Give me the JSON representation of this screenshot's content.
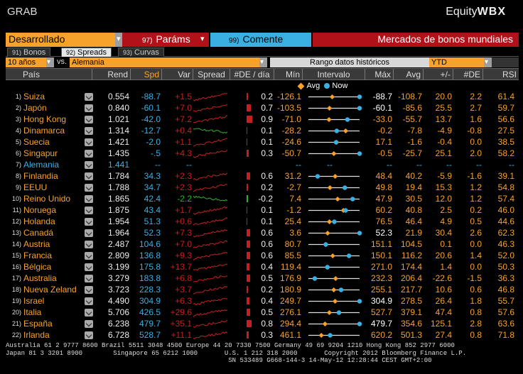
{
  "title": "GRAB",
  "brand": {
    "prefix": "Equity",
    "suffix": "WBX"
  },
  "toolbar": {
    "market": "Desarrollado",
    "params_num": "97)",
    "params_label": "Paráms",
    "comment_num": "99)",
    "comment_label": "Comente",
    "screen_title": "Mercados de bonos mundiales"
  },
  "tabs": [
    {
      "num": "91)",
      "label": "Bonos"
    },
    {
      "num": "92)",
      "label": "Spreads"
    },
    {
      "num": "93)",
      "label": "Curvas"
    }
  ],
  "filters": {
    "period": "10 años",
    "vs_label": "vs.",
    "vs_country": "Alemania",
    "hist_label": "Rango datos históricos",
    "range": "YTD"
  },
  "headers": {
    "pais": "País",
    "rend": "Rend",
    "spd": "Spd",
    "var": "Var",
    "spread": "Spread",
    "de_dia": "#DE / día",
    "min": "Mín",
    "intervalo": "Intervalo",
    "max": "Máx",
    "avg": "Avg",
    "pm": "+/-",
    "de": "#DE",
    "rsi": "RSI"
  },
  "legend": {
    "avg": "Avg",
    "now": "Now"
  },
  "colors": {
    "accent": "#f7a22a",
    "blue": "#3ab0e2",
    "red": "#c42020",
    "green": "#2fb02f"
  },
  "rows": [
    {
      "n": "1)",
      "pais": "Suiza",
      "rend": "0.554",
      "spd": "-88.7",
      "var": "+1.5",
      "de": "0.2",
      "min": "-126.1",
      "max": "-88.7",
      "avg": "-108.7",
      "pm": "20.0",
      "dde": "2.2",
      "rsi": "61.4",
      "trend": "red"
    },
    {
      "n": "2)",
      "pais": "Japón",
      "rend": "0.840",
      "spd": "-60.1",
      "var": "+7.0",
      "de": "0.7",
      "min": "-103.5",
      "max": "-60.1",
      "avg": "-85.6",
      "pm": "25.5",
      "dde": "2.7",
      "rsi": "59.7",
      "trend": "red"
    },
    {
      "n": "3)",
      "pais": "Hong Kong",
      "rend": "1.021",
      "spd": "-42.0",
      "var": "+7.2",
      "de": "0.9",
      "min": "-71.0",
      "max": "-33.0",
      "avg": "-55.7",
      "pm": "13.7",
      "dde": "1.6",
      "rsi": "56.6",
      "trend": "red"
    },
    {
      "n": "4)",
      "pais": "Dinamarca",
      "rend": "1.314",
      "spd": "-12.7",
      "var": "+0.4",
      "de": "0.1",
      "min": "-28.2",
      "max": "-0.2",
      "avg": "-7.8",
      "pm": "-4.9",
      "dde": "-0.8",
      "rsi": "27.5",
      "trend": "green"
    },
    {
      "n": "5)",
      "pais": "Suecia",
      "rend": "1.421",
      "spd": "-2.0",
      "var": "+1.1",
      "de": "0.1",
      "min": "-24.6",
      "max": "17.1",
      "avg": "-1.6",
      "pm": "-0.4",
      "dde": "0.0",
      "rsi": "38.5",
      "trend": "red"
    },
    {
      "n": "6)",
      "pais": "Singapur",
      "rend": "1.435",
      "spd": "-.5",
      "var": "+4.3",
      "de": "0.3",
      "min": "-50.7",
      "max": "-0.5",
      "avg": "-25.7",
      "pm": "25.1",
      "dde": "2.0",
      "rsi": "58.2",
      "trend": "red"
    },
    {
      "n": "7)",
      "pais": "Alemania",
      "rend": "1.441",
      "spd": "--",
      "var": "--",
      "de": "",
      "min": "--",
      "max": "--",
      "avg": "--",
      "pm": "--",
      "dde": "--",
      "rsi": "--",
      "trend": "none",
      "base": true
    },
    {
      "n": "8)",
      "pais": "Finlandia",
      "rend": "1.784",
      "spd": "34.3",
      "var": "+2.3",
      "de": "0.6",
      "min": "31.2",
      "max": "48.4",
      "avg": "40.2",
      "pm": "-5.9",
      "dde": "-1.6",
      "rsi": "39.1",
      "trend": "red"
    },
    {
      "n": "9)",
      "pais": "EEUU",
      "rend": "1.788",
      "spd": "34.7",
      "var": "+2.3",
      "de": "0.2",
      "min": "-2.7",
      "max": "49.8",
      "avg": "19.4",
      "pm": "15.3",
      "dde": "1.2",
      "rsi": "54.8",
      "trend": "red"
    },
    {
      "n": "10)",
      "pais": "Reino Unido",
      "rend": "1.865",
      "spd": "42.4",
      "var": "-2.2",
      "de": "-0.2",
      "min": "7.4",
      "max": "47.9",
      "avg": "30.5",
      "pm": "12.0",
      "dde": "1.2",
      "rsi": "57.4",
      "trend": "green"
    },
    {
      "n": "11)",
      "pais": "Noruega",
      "rend": "1.875",
      "spd": "43.4",
      "var": "+1.7",
      "de": "0.1",
      "min": "-1.2",
      "max": "60.2",
      "avg": "40.8",
      "pm": "2.5",
      "dde": "0.2",
      "rsi": "46.0",
      "trend": "red"
    },
    {
      "n": "12)",
      "pais": "Holanda",
      "rend": "1.954",
      "spd": "51.3",
      "var": "+0.6",
      "de": "0.1",
      "min": "25.4",
      "max": "76.5",
      "avg": "46.4",
      "pm": "4.9",
      "dde": "0.5",
      "rsi": "44.6",
      "trend": "red"
    },
    {
      "n": "13)",
      "pais": "Canadá",
      "rend": "1.964",
      "spd": "52.3",
      "var": "+7.3",
      "de": "0.6",
      "min": "3.6",
      "max": "52.3",
      "avg": "21.9",
      "pm": "30.4",
      "dde": "2.6",
      "rsi": "62.3",
      "trend": "red"
    },
    {
      "n": "14)",
      "pais": "Austria",
      "rend": "2.487",
      "spd": "104.6",
      "var": "+7.0",
      "de": "0.6",
      "min": "80.7",
      "max": "151.1",
      "avg": "104.5",
      "pm": "0.1",
      "dde": "0.0",
      "rsi": "46.3",
      "trend": "red"
    },
    {
      "n": "15)",
      "pais": "Francia",
      "rend": "2.809",
      "spd": "136.8",
      "var": "+9.3",
      "de": "0.6",
      "min": "85.5",
      "max": "150.1",
      "avg": "116.2",
      "pm": "20.6",
      "dde": "1.4",
      "rsi": "52.0",
      "trend": "red"
    },
    {
      "n": "16)",
      "pais": "Bélgica",
      "rend": "3.199",
      "spd": "175.8",
      "var": "+13.7",
      "de": "0.4",
      "min": "119.4",
      "max": "271.0",
      "avg": "174.4",
      "pm": "1.4",
      "dde": "0.0",
      "rsi": "50.3",
      "trend": "red"
    },
    {
      "n": "17)",
      "pais": "Australia",
      "rend": "3.279",
      "spd": "183.8",
      "var": "+6.8",
      "de": "0.5",
      "min": "176.9",
      "max": "232.3",
      "avg": "206.4",
      "pm": "-22.6",
      "dde": "-1.5",
      "rsi": "36.3",
      "trend": "red"
    },
    {
      "n": "18)",
      "pais": "Nueva Zeland",
      "rend": "3.723",
      "spd": "228.3",
      "var": "+3.7",
      "de": "0.2",
      "min": "180.9",
      "max": "255.1",
      "avg": "217.7",
      "pm": "10.6",
      "dde": "0.6",
      "rsi": "46.8",
      "trend": "red"
    },
    {
      "n": "19)",
      "pais": "Israel",
      "rend": "4.490",
      "spd": "304.9",
      "var": "+6.3",
      "de": "0.4",
      "min": "249.7",
      "max": "304.9",
      "avg": "278.5",
      "pm": "26.4",
      "dde": "1.8",
      "rsi": "55.7",
      "trend": "red"
    },
    {
      "n": "20)",
      "pais": "Italia",
      "rend": "5.706",
      "spd": "426.5",
      "var": "+29.6",
      "de": "0.5",
      "min": "276.1",
      "max": "527.7",
      "avg": "379.1",
      "pm": "47.4",
      "dde": "0.8",
      "rsi": "57.6",
      "trend": "red"
    },
    {
      "n": "21)",
      "pais": "España",
      "rend": "6.238",
      "spd": "479.7",
      "var": "+35.1",
      "de": "0.8",
      "min": "294.4",
      "max": "479.7",
      "avg": "354.6",
      "pm": "125.1",
      "dde": "2.8",
      "rsi": "63.6",
      "trend": "red"
    },
    {
      "n": "22)",
      "pais": "Irlanda",
      "rend": "6.728",
      "spd": "528.7",
      "var": "+11.1",
      "de": "0.3",
      "min": "461.1",
      "max": "620.2",
      "avg": "501.3",
      "pm": "27.4",
      "dde": "0.8",
      "rsi": "71.8",
      "trend": "red"
    }
  ],
  "footer": [
    "Australia 61 2 9777 8600 Brazil 5511 3048 4500 Europe 44 20 7330 7500 Germany 49 69 9204 1210 Hong Kong 852 2977 6000",
    "Japan 81 3 3201 8900        Singapore 65 6212 1000       U.S. 1 212 318 2000       Copyright 2012 Bloomberg Finance L.P.",
    "                                                          SN 533489 G668-144-3 14-May-12 12:28:44 CEST GMT+2:00"
  ]
}
